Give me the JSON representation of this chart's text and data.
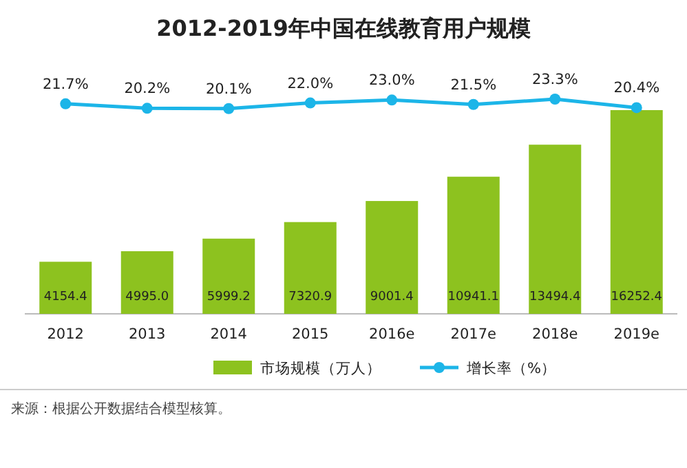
{
  "chart_data": {
    "type": "bar",
    "title": "2012-2019年中国在线教育用户规模",
    "categories": [
      "2012",
      "2013",
      "2014",
      "2015",
      "2016e",
      "2017e",
      "2018e",
      "2019e"
    ],
    "series": [
      {
        "name": "市场规模（万人）",
        "color": "#8dc21f",
        "values": [
          4154.4,
          4995.0,
          5999.2,
          7320.9,
          9001.4,
          10941.1,
          13494.4,
          16252.4
        ],
        "value_labels": [
          "4154.4",
          "4995.0",
          "5999.2",
          "7320.9",
          "9001.4",
          "10941.1",
          "13494.4",
          "16252.4"
        ]
      },
      {
        "name": "增长率（%）",
        "type": "line",
        "axis": "y2",
        "color": "#1cb5e8",
        "values": [
          21.7,
          20.2,
          20.1,
          22.0,
          23.0,
          21.5,
          23.3,
          20.4
        ],
        "value_labels": [
          "21.7%",
          "20.2%",
          "20.1%",
          "22.0%",
          "23.0%",
          "21.5%",
          "23.3%",
          "20.4%"
        ]
      }
    ],
    "marker": "circle",
    "legend": "bottom",
    "annotations": [
      "来源：根据公开数据结合模型核算。"
    ]
  }
}
